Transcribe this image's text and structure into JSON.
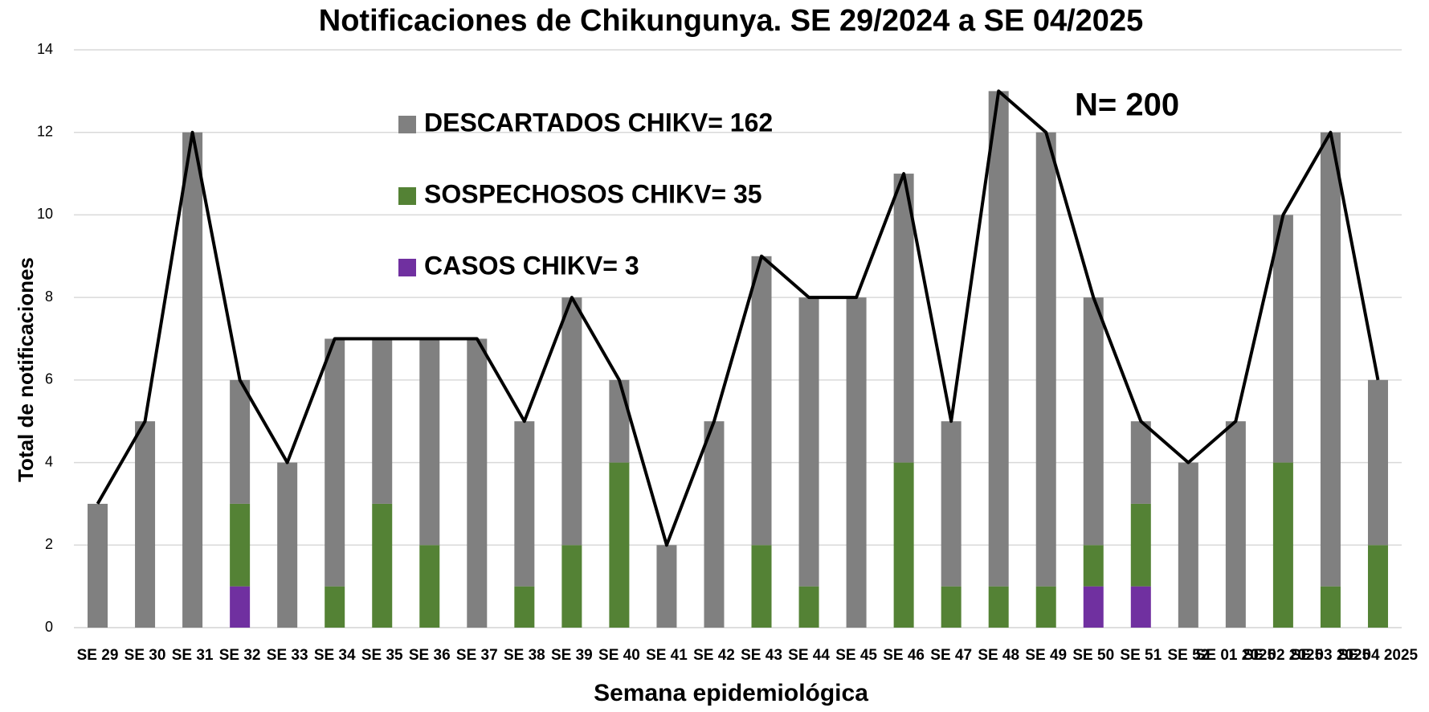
{
  "chart_data": {
    "type": "stacked_bar_line",
    "title": "Notificaciones de Chikungunya. SE 29/2024 a SE 04/2025",
    "x_label": "Semana epidemiológica",
    "y_label": "Total de notificaciones",
    "annotation": "N= 200",
    "categories": [
      "SE 29",
      "SE 30",
      "SE 31",
      "SE 32",
      "SE 33",
      "SE 34",
      "SE 35",
      "SE 36",
      "SE 37",
      "SE 38",
      "SE 39",
      "SE 40",
      "SE 41",
      "SE 42",
      "SE 43",
      "SE 44",
      "SE 45",
      "SE 46",
      "SE 47",
      "SE 48",
      "SE 49",
      "SE 50",
      "SE 51",
      "SE 52",
      "SE 01 2025",
      "SE 02 2025",
      "SE 03 2025",
      "SE 04 2025"
    ],
    "series": [
      {
        "name": "CASOS CHIKV= 3",
        "color": "#7030a0",
        "values": [
          0,
          0,
          0,
          1,
          0,
          0,
          0,
          0,
          0,
          0,
          0,
          0,
          0,
          0,
          0,
          0,
          0,
          0,
          0,
          0,
          0,
          1,
          1,
          0,
          0,
          0,
          0,
          0
        ]
      },
      {
        "name": "SOSPECHOSOS CHIKV= 35",
        "color": "#548235",
        "values": [
          0,
          0,
          0,
          2,
          0,
          1,
          3,
          2,
          0,
          1,
          2,
          4,
          0,
          0,
          2,
          1,
          0,
          4,
          1,
          1,
          1,
          1,
          2,
          0,
          0,
          4,
          1,
          2
        ]
      },
      {
        "name": "DESCARTADOS CHIKV= 162",
        "color": "#808080",
        "values": [
          3,
          5,
          12,
          3,
          4,
          6,
          4,
          5,
          7,
          4,
          6,
          2,
          2,
          5,
          7,
          7,
          8,
          7,
          4,
          12,
          11,
          6,
          2,
          4,
          5,
          6,
          11,
          4
        ]
      }
    ],
    "line": {
      "color": "#000000",
      "values": [
        3,
        5,
        12,
        6,
        4,
        7,
        7,
        7,
        7,
        5,
        8,
        6,
        2,
        5,
        9,
        8,
        8,
        11,
        5,
        13,
        12,
        8,
        5,
        4,
        5,
        10,
        12,
        6
      ]
    },
    "ylim": [
      0,
      14
    ],
    "yticks": [
      0,
      2,
      4,
      6,
      8,
      10,
      12,
      14
    ],
    "grid": true
  }
}
